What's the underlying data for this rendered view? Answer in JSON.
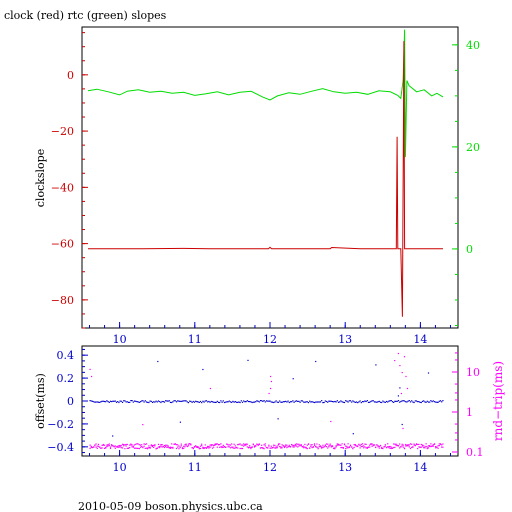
{
  "title": "clock (red) rtc (green) slopes",
  "footer": "2010-05-09  boson.physics.ubc.ca",
  "colors": {
    "red": "#cc0000",
    "green": "#00dd00",
    "blue": "#0000cc",
    "magenta": "#ff00ff",
    "frame": "#000000"
  },
  "chart_data": [
    {
      "type": "line",
      "ylabel": "clockslope",
      "xlim": [
        9.5,
        14.5
      ],
      "ylim": [
        -90,
        17
      ],
      "right_ylim": [
        -15.5,
        43.5
      ],
      "x_ticks": [
        "10",
        "11",
        "12",
        "13",
        "14"
      ],
      "left_ticks": [
        "0",
        "−20",
        "−40",
        "−60",
        "−80"
      ],
      "right_ticks": [
        "0",
        "20",
        "40"
      ],
      "grid": false,
      "series": [
        {
          "axis": "left",
          "x": [
            9.58,
            9.9,
            10.3,
            10.85,
            11.2,
            11.6,
            11.98,
            12.0,
            12.02,
            12.5,
            12.8,
            12.82,
            13.2,
            13.68,
            13.69,
            13.7,
            13.72,
            13.74,
            13.76,
            13.78,
            13.79,
            13.8,
            14.0,
            14.3
          ],
          "y": [
            -61.8,
            -61.8,
            -61.8,
            -61.7,
            -61.8,
            -61.8,
            -61.8,
            -61.3,
            -61.8,
            -61.8,
            -61.8,
            -61.4,
            -61.8,
            -61.8,
            -22.0,
            -61.8,
            -61.8,
            -61.8,
            -86.0,
            12.0,
            -61.8,
            -61.8,
            -61.8,
            -61.8
          ]
        },
        {
          "axis": "right",
          "x": [
            9.58,
            9.7,
            9.85,
            10.0,
            10.1,
            10.25,
            10.4,
            10.55,
            10.7,
            10.85,
            11.0,
            11.15,
            11.3,
            11.45,
            11.6,
            11.75,
            11.9,
            12.0,
            12.1,
            12.25,
            12.4,
            12.55,
            12.7,
            12.85,
            13.0,
            13.15,
            13.3,
            13.45,
            13.6,
            13.7,
            13.74,
            13.77,
            13.79,
            13.8,
            13.82,
            13.85,
            13.95,
            14.05,
            14.15,
            14.22,
            14.3
          ],
          "y": [
            31.0,
            31.3,
            30.8,
            30.2,
            30.9,
            31.2,
            30.7,
            30.9,
            30.5,
            30.7,
            30.1,
            30.4,
            30.8,
            30.2,
            30.7,
            30.9,
            29.8,
            29.2,
            30.0,
            30.6,
            30.3,
            30.9,
            31.4,
            30.8,
            30.5,
            30.7,
            30.3,
            31.0,
            30.8,
            30.1,
            29.5,
            33.0,
            43.0,
            18.0,
            33.0,
            32.0,
            30.8,
            31.2,
            30.0,
            30.5,
            29.8
          ]
        }
      ]
    },
    {
      "type": "scatter",
      "ylabel": "offset(ms)",
      "right_ylabel": "rnd−trip(ms)",
      "xlim": [
        9.5,
        14.5
      ],
      "ylim": [
        -0.48,
        0.48
      ],
      "right_ylim_log10": [
        -1.1,
        1.65
      ],
      "right_log_scale": true,
      "x_ticks": [
        "10",
        "11",
        "12",
        "13",
        "14"
      ],
      "left_ticks": [
        "0.4",
        "0.2",
        "0",
        "−0.2",
        "−0.4"
      ],
      "right_ticks": [
        "10",
        "1",
        "0.1"
      ],
      "grid": false,
      "series": [
        {
          "axis": "left",
          "x": [
            9.6,
            9.8,
            10.0,
            10.2,
            10.4,
            10.6,
            10.8,
            11.0,
            11.2,
            11.4,
            11.6,
            11.8,
            12.0,
            12.2,
            12.4,
            12.6,
            12.8,
            13.0,
            13.2,
            13.4,
            13.6,
            13.8,
            14.0,
            14.3
          ],
          "y": [
            0.0,
            0.0,
            0.0,
            0.0,
            0.0,
            0.0,
            0.0,
            0.0,
            0.0,
            0.0,
            0.0,
            0.0,
            0.0,
            0.0,
            0.0,
            0.0,
            0.0,
            0.0,
            0.0,
            0.0,
            0.0,
            0.0,
            0.0,
            0.0
          ]
        },
        {
          "axis": "right",
          "x": [
            9.6,
            9.8,
            10.0,
            10.2,
            10.4,
            10.6,
            10.8,
            11.0,
            11.2,
            11.4,
            11.6,
            11.8,
            12.0,
            12.2,
            12.4,
            12.6,
            12.8,
            13.0,
            13.2,
            13.4,
            13.6,
            13.8,
            14.0,
            14.3
          ],
          "y": [
            0.14,
            0.14,
            0.14,
            0.14,
            0.14,
            0.14,
            0.14,
            0.14,
            0.14,
            0.14,
            0.14,
            0.14,
            0.14,
            0.14,
            0.14,
            0.14,
            0.14,
            0.14,
            0.14,
            0.14,
            0.14,
            0.14,
            0.14,
            0.14
          ]
        }
      ]
    }
  ]
}
